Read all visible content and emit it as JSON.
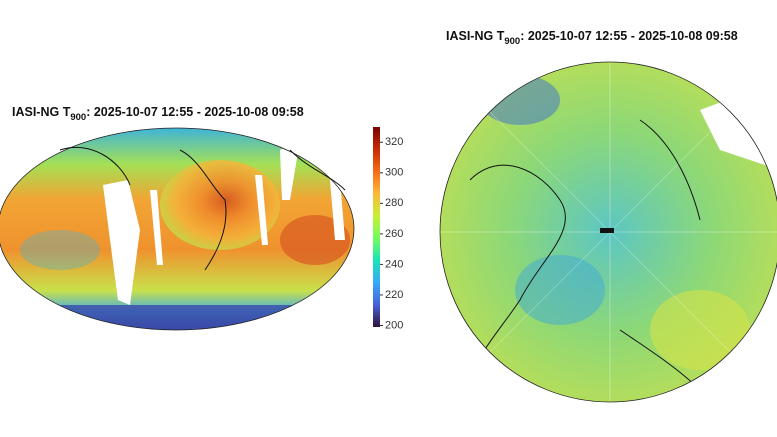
{
  "left_map": {
    "title": {
      "prefix": "IASI-NG T",
      "subscript": "900",
      "suffix": ": 2025-10-07 12:55 - 2025-10-08 09:58"
    }
  },
  "colorbar": {
    "range": [
      199,
      330
    ],
    "ticks": [
      200,
      220,
      240,
      260,
      280,
      300,
      320
    ]
  },
  "right_map": {
    "title": {
      "prefix": "IASI-NG T",
      "subscript": "900",
      "suffix": ": 2025-10-07 12:55 - 2025-10-08 09:58"
    }
  }
}
